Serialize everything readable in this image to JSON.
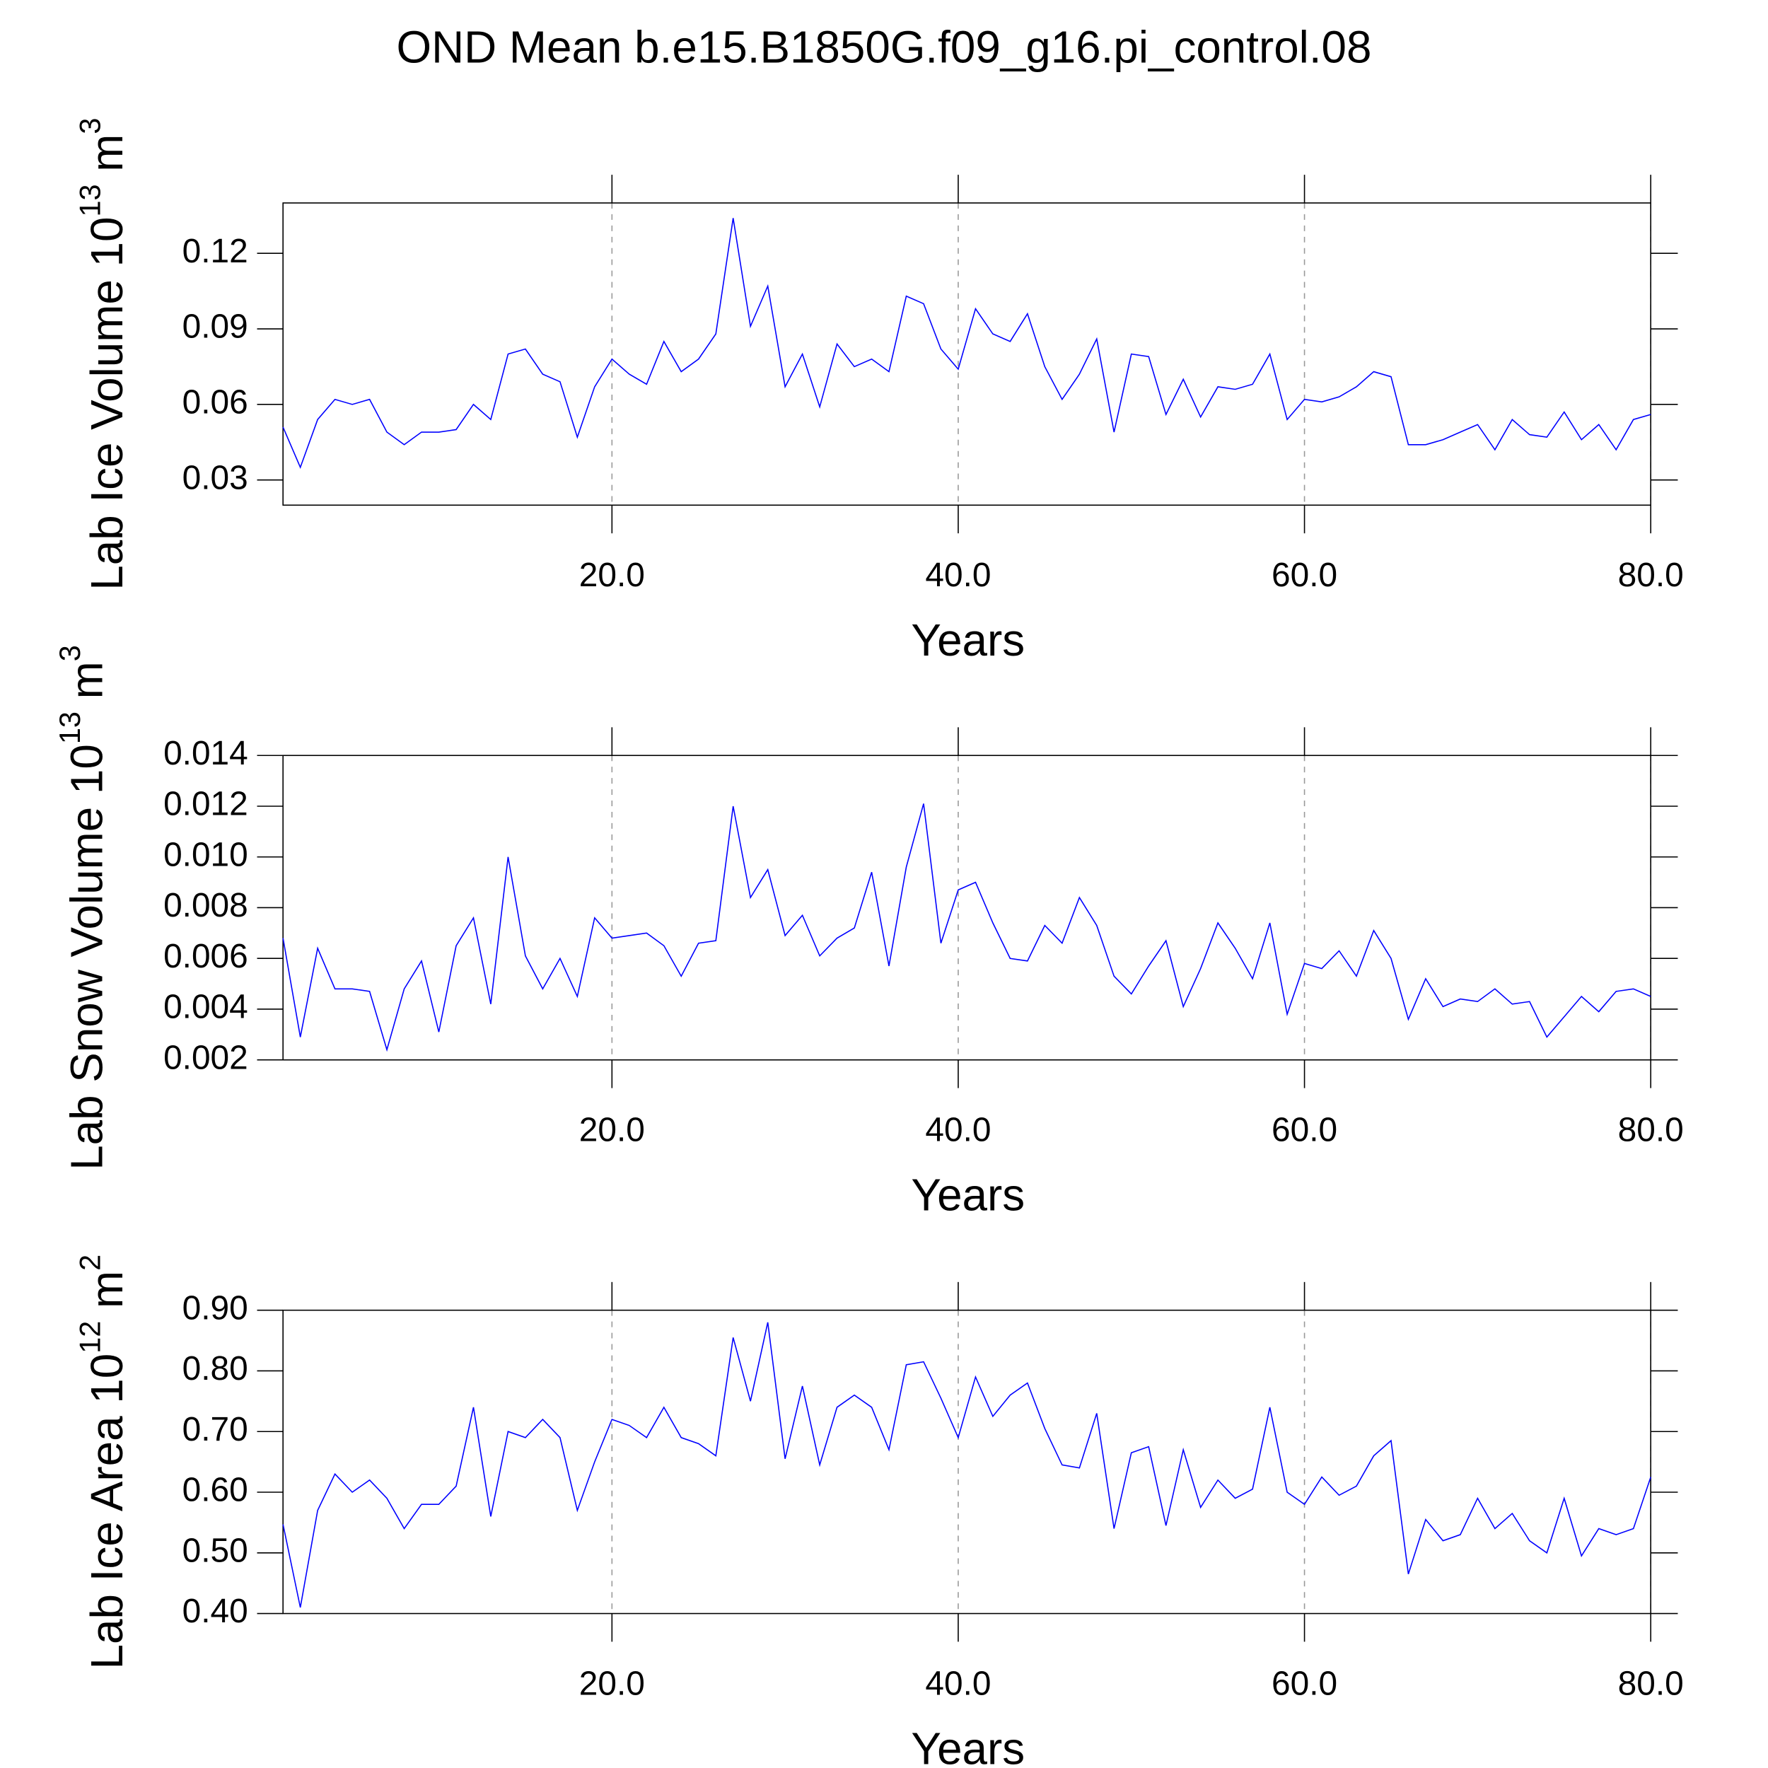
{
  "title": "OND Mean b.e15.B1850G.f09_g16.pi_control.08",
  "chart_data": [
    {
      "type": "line",
      "ylabel": [
        "Lab Ice Volume 10",
        "13",
        " m",
        "3"
      ],
      "xlabel": "Years",
      "color": "#0000ff",
      "grid": true,
      "x": [
        1,
        2,
        3,
        4,
        5,
        6,
        7,
        8,
        9,
        10,
        11,
        12,
        13,
        14,
        15,
        16,
        17,
        18,
        19,
        20,
        21,
        22,
        23,
        24,
        25,
        26,
        27,
        28,
        29,
        30,
        31,
        32,
        33,
        34,
        35,
        36,
        37,
        38,
        39,
        40,
        41,
        42,
        43,
        44,
        45,
        46,
        47,
        48,
        49,
        50,
        51,
        52,
        53,
        54,
        55,
        56,
        57,
        58,
        59,
        60,
        61,
        62,
        63,
        64,
        65,
        66,
        67,
        68,
        69,
        70,
        71,
        72,
        73,
        74,
        75,
        76,
        77,
        78,
        79,
        80
      ],
      "values": [
        0.051,
        0.035,
        0.054,
        0.062,
        0.06,
        0.062,
        0.049,
        0.044,
        0.049,
        0.049,
        0.05,
        0.06,
        0.054,
        0.08,
        0.082,
        0.072,
        0.069,
        0.047,
        0.067,
        0.078,
        0.072,
        0.068,
        0.085,
        0.073,
        0.078,
        0.088,
        0.134,
        0.091,
        0.107,
        0.067,
        0.08,
        0.059,
        0.084,
        0.075,
        0.078,
        0.073,
        0.103,
        0.1,
        0.082,
        0.074,
        0.098,
        0.088,
        0.085,
        0.096,
        0.075,
        0.062,
        0.072,
        0.086,
        0.049,
        0.08,
        0.079,
        0.056,
        0.07,
        0.055,
        0.067,
        0.066,
        0.068,
        0.08,
        0.054,
        0.062,
        0.061,
        0.063,
        0.067,
        0.073,
        0.071,
        0.044,
        0.044,
        0.046,
        0.049,
        0.052,
        0.042,
        0.054,
        0.048,
        0.047,
        0.057,
        0.046,
        0.052,
        0.042,
        0.054,
        0.056
      ],
      "xlim": [
        1,
        80
      ],
      "xticks": [
        {
          "value": 20,
          "label": "20.0"
        },
        {
          "value": 40,
          "label": "40.0"
        },
        {
          "value": 60,
          "label": "60.0"
        },
        {
          "value": 80,
          "label": "80.0"
        }
      ],
      "ylim": [
        0.02,
        0.14
      ],
      "yticks": [
        0.03,
        0.06,
        0.09,
        0.12
      ]
    },
    {
      "type": "line",
      "ylabel": [
        "Lab Snow Volume 10",
        "13",
        " m",
        "3"
      ],
      "xlabel": "Years",
      "color": "#0000ff",
      "grid": true,
      "x": [
        1,
        2,
        3,
        4,
        5,
        6,
        7,
        8,
        9,
        10,
        11,
        12,
        13,
        14,
        15,
        16,
        17,
        18,
        19,
        20,
        21,
        22,
        23,
        24,
        25,
        26,
        27,
        28,
        29,
        30,
        31,
        32,
        33,
        34,
        35,
        36,
        37,
        38,
        39,
        40,
        41,
        42,
        43,
        44,
        45,
        46,
        47,
        48,
        49,
        50,
        51,
        52,
        53,
        54,
        55,
        56,
        57,
        58,
        59,
        60,
        61,
        62,
        63,
        64,
        65,
        66,
        67,
        68,
        69,
        70,
        71,
        72,
        73,
        74,
        75,
        76,
        77,
        78,
        79,
        80
      ],
      "values": [
        0.0068,
        0.0029,
        0.0064,
        0.0048,
        0.0048,
        0.0047,
        0.0024,
        0.0048,
        0.0059,
        0.0031,
        0.0065,
        0.0076,
        0.0042,
        0.01,
        0.0061,
        0.0048,
        0.006,
        0.0045,
        0.0076,
        0.0068,
        0.0069,
        0.007,
        0.0065,
        0.0053,
        0.0066,
        0.0067,
        0.012,
        0.0084,
        0.0095,
        0.0069,
        0.0077,
        0.0061,
        0.0068,
        0.0072,
        0.0094,
        0.0057,
        0.0096,
        0.0121,
        0.0066,
        0.0087,
        0.009,
        0.0074,
        0.006,
        0.0059,
        0.0073,
        0.0066,
        0.0084,
        0.0073,
        0.0053,
        0.0046,
        0.0057,
        0.0067,
        0.0041,
        0.0056,
        0.0074,
        0.0064,
        0.0052,
        0.0074,
        0.0038,
        0.0058,
        0.0056,
        0.0063,
        0.0053,
        0.0071,
        0.006,
        0.0036,
        0.0052,
        0.0041,
        0.0044,
        0.0043,
        0.0048,
        0.0042,
        0.0043,
        0.0029,
        0.0037,
        0.0045,
        0.0039,
        0.0047,
        0.0048,
        0.0045
      ],
      "xlim": [
        1,
        80
      ],
      "xticks": [
        {
          "value": 20,
          "label": "20.0"
        },
        {
          "value": 40,
          "label": "40.0"
        },
        {
          "value": 60,
          "label": "60.0"
        },
        {
          "value": 80,
          "label": "80.0"
        }
      ],
      "ylim": [
        0.002,
        0.014
      ],
      "yticks": [
        0.002,
        0.004,
        0.006,
        0.008,
        {
          "value": 0.01,
          "label": "0.010"
        },
        0.012,
        0.014
      ]
    },
    {
      "type": "line",
      "ylabel": [
        "Lab Ice Area 10",
        "12",
        " m",
        "2"
      ],
      "xlabel": "Years",
      "color": "#0000ff",
      "grid": true,
      "x": [
        1,
        2,
        3,
        4,
        5,
        6,
        7,
        8,
        9,
        10,
        11,
        12,
        13,
        14,
        15,
        16,
        17,
        18,
        19,
        20,
        21,
        22,
        23,
        24,
        25,
        26,
        27,
        28,
        29,
        30,
        31,
        32,
        33,
        34,
        35,
        36,
        37,
        38,
        39,
        40,
        41,
        42,
        43,
        44,
        45,
        46,
        47,
        48,
        49,
        50,
        51,
        52,
        53,
        54,
        55,
        56,
        57,
        58,
        59,
        60,
        61,
        62,
        63,
        64,
        65,
        66,
        67,
        68,
        69,
        70,
        71,
        72,
        73,
        74,
        75,
        76,
        77,
        78,
        79,
        80
      ],
      "values": [
        0.547,
        0.41,
        0.57,
        0.63,
        0.6,
        0.62,
        0.59,
        0.54,
        0.58,
        0.58,
        0.61,
        0.74,
        0.56,
        0.7,
        0.69,
        0.72,
        0.69,
        0.57,
        0.65,
        0.72,
        0.71,
        0.69,
        0.74,
        0.69,
        0.68,
        0.66,
        0.855,
        0.75,
        0.88,
        0.655,
        0.775,
        0.645,
        0.74,
        0.76,
        0.74,
        0.67,
        0.81,
        0.815,
        0.755,
        0.69,
        0.79,
        0.725,
        0.76,
        0.78,
        0.705,
        0.645,
        0.64,
        0.73,
        0.54,
        0.665,
        0.675,
        0.545,
        0.67,
        0.575,
        0.62,
        0.59,
        0.605,
        0.74,
        0.6,
        0.58,
        0.625,
        0.595,
        0.61,
        0.66,
        0.685,
        0.465,
        0.555,
        0.52,
        0.53,
        0.59,
        0.54,
        0.565,
        0.52,
        0.5,
        0.59,
        0.495,
        0.54,
        0.53,
        0.54,
        0.625
      ],
      "xlim": [
        1,
        80
      ],
      "xticks": [
        {
          "value": 20,
          "label": "20.0"
        },
        {
          "value": 40,
          "label": "40.0"
        },
        {
          "value": 60,
          "label": "60.0"
        },
        {
          "value": 80,
          "label": "80.0"
        }
      ],
      "ylim": [
        0.4,
        0.9
      ],
      "yticks": [
        {
          "value": 0.4,
          "label": "0.40"
        },
        {
          "value": 0.5,
          "label": "0.50"
        },
        {
          "value": 0.6,
          "label": "0.60"
        },
        {
          "value": 0.7,
          "label": "0.70"
        },
        {
          "value": 0.8,
          "label": "0.80"
        },
        {
          "value": 0.9,
          "label": "0.90"
        }
      ]
    }
  ]
}
